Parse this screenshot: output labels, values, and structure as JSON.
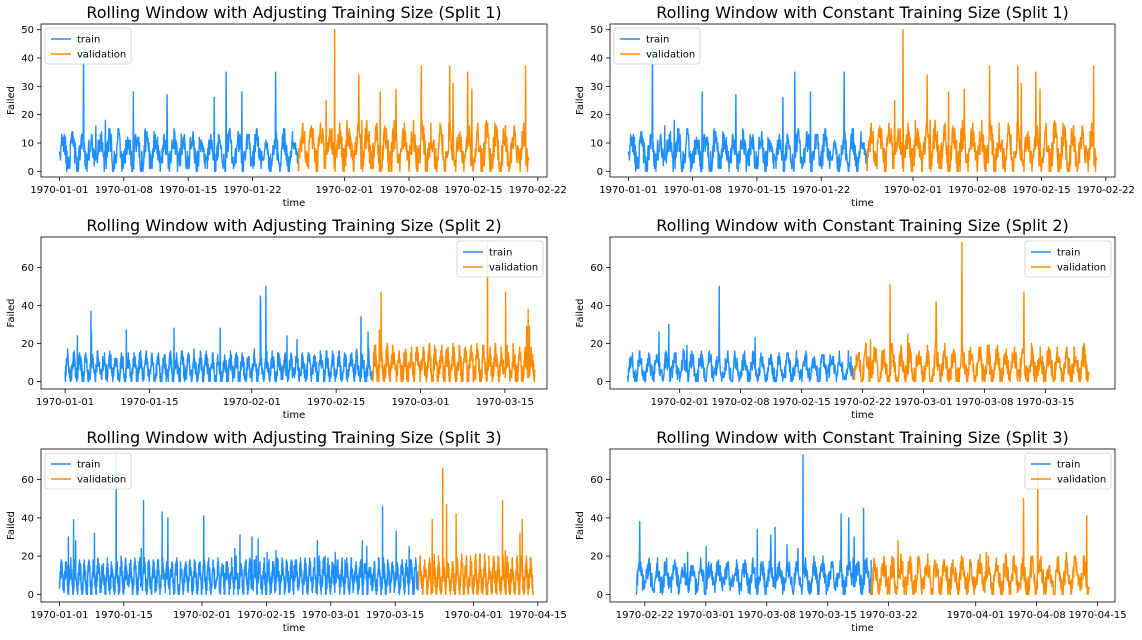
{
  "figure": {
    "colors": {
      "train": "#1f8fff",
      "validation": "#ff8c00",
      "axis": "#000000",
      "text": "#000000"
    }
  },
  "chart_data": [
    {
      "type": "line",
      "title": "Rolling Window with Adjusting Training Size (Split 1)",
      "xlabel": "time",
      "ylabel": "Failed",
      "xlim": [
        "1969-12-30",
        "1970-02-23"
      ],
      "ylim": [
        -2,
        52
      ],
      "xticks": [
        "1970-01-01",
        "1970-01-08",
        "1970-01-15",
        "1970-01-22",
        "1970-02-01",
        "1970-02-08",
        "1970-02-15",
        "1970-02-22"
      ],
      "yticks": [
        0,
        10,
        20,
        30,
        40,
        50
      ],
      "legend": "upper left",
      "grid": false,
      "series": [
        {
          "name": "train",
          "x_start": "1970-01-01",
          "x_end": "1970-01-27",
          "base": 7,
          "spread": 10,
          "peak_max": 45,
          "seed": 11
        },
        {
          "name": "validation",
          "x_start": "1970-01-27",
          "x_end": "1970-02-21",
          "base": 8,
          "spread": 12,
          "peak_max": 50,
          "seed": 12
        }
      ]
    },
    {
      "type": "line",
      "title": "Rolling Window with Constant Training Size (Split 1)",
      "xlabel": "time",
      "ylabel": "Failed",
      "xlim": [
        "1969-12-30",
        "1970-02-23"
      ],
      "ylim": [
        -2,
        52
      ],
      "xticks": [
        "1970-01-01",
        "1970-01-08",
        "1970-01-15",
        "1970-01-22",
        "1970-02-01",
        "1970-02-08",
        "1970-02-15",
        "1970-02-22"
      ],
      "yticks": [
        0,
        10,
        20,
        30,
        40,
        50
      ],
      "legend": "upper left",
      "grid": false,
      "series": [
        {
          "name": "train",
          "x_start": "1970-01-01",
          "x_end": "1970-01-27",
          "base": 7,
          "spread": 10,
          "peak_max": 45,
          "seed": 11
        },
        {
          "name": "validation",
          "x_start": "1970-01-27",
          "x_end": "1970-02-21",
          "base": 8,
          "spread": 12,
          "peak_max": 50,
          "seed": 12
        }
      ]
    },
    {
      "type": "line",
      "title": "Rolling Window with Adjusting Training Size (Split 2)",
      "xlabel": "time",
      "ylabel": "Failed",
      "xlim": [
        "1969-12-28",
        "1970-03-22"
      ],
      "ylim": [
        -4,
        76
      ],
      "xticks": [
        "1970-01-01",
        "1970-01-15",
        "1970-02-01",
        "1970-02-15",
        "1970-03-01",
        "1970-03-15"
      ],
      "yticks": [
        0,
        20,
        40,
        60
      ],
      "legend": "upper right",
      "grid": false,
      "series": [
        {
          "name": "train",
          "x_start": "1970-01-01",
          "x_end": "1970-02-21",
          "base": 7,
          "spread": 11,
          "peak_max": 50,
          "seed": 21
        },
        {
          "name": "validation",
          "x_start": "1970-02-21",
          "x_end": "1970-03-20",
          "base": 8,
          "spread": 14,
          "peak_max": 73,
          "seed": 22
        }
      ]
    },
    {
      "type": "line",
      "title": "Rolling Window with Constant Training Size (Split 2)",
      "xlabel": "time",
      "ylabel": "Failed",
      "xlim": [
        "1970-01-24",
        "1970-03-23"
      ],
      "ylim": [
        -4,
        76
      ],
      "xticks": [
        "1970-02-01",
        "1970-02-08",
        "1970-02-15",
        "1970-02-22",
        "1970-03-01",
        "1970-03-08",
        "1970-03-15"
      ],
      "yticks": [
        0,
        20,
        40,
        60
      ],
      "legend": "upper right",
      "grid": false,
      "series": [
        {
          "name": "train",
          "x_start": "1970-01-26",
          "x_end": "1970-02-21",
          "base": 7,
          "spread": 11,
          "peak_max": 50,
          "seed": 31
        },
        {
          "name": "validation",
          "x_start": "1970-02-21",
          "x_end": "1970-03-20",
          "base": 8,
          "spread": 14,
          "peak_max": 73,
          "seed": 32
        }
      ]
    },
    {
      "type": "line",
      "title": "Rolling Window with Adjusting Training Size (Split 3)",
      "xlabel": "time",
      "ylabel": "Failed",
      "xlim": [
        "1969-12-28",
        "1970-04-17"
      ],
      "ylim": [
        -4,
        76
      ],
      "xticks": [
        "1970-01-01",
        "1970-01-15",
        "1970-02-01",
        "1970-02-15",
        "1970-03-01",
        "1970-03-15",
        "1970-04-01",
        "1970-04-15"
      ],
      "yticks": [
        0,
        20,
        40,
        60
      ],
      "legend": "upper left",
      "grid": false,
      "series": [
        {
          "name": "train",
          "x_start": "1970-01-01",
          "x_end": "1970-03-20",
          "base": 9,
          "spread": 12,
          "peak_max": 73,
          "seed": 41
        },
        {
          "name": "validation",
          "x_start": "1970-03-20",
          "x_end": "1970-04-14",
          "base": 9,
          "spread": 14,
          "peak_max": 66,
          "seed": 42
        }
      ]
    },
    {
      "type": "line",
      "title": "Rolling Window with Constant Training Size (Split 3)",
      "xlabel": "time",
      "ylabel": "Failed",
      "xlim": [
        "1970-02-18",
        "1970-04-17"
      ],
      "ylim": [
        -4,
        76
      ],
      "xticks": [
        "1970-02-22",
        "1970-03-01",
        "1970-03-08",
        "1970-03-15",
        "1970-03-22",
        "1970-04-01",
        "1970-04-08",
        "1970-04-15"
      ],
      "yticks": [
        0,
        20,
        40,
        60
      ],
      "legend": "upper right",
      "grid": false,
      "series": [
        {
          "name": "train",
          "x_start": "1970-02-21",
          "x_end": "1970-03-20",
          "base": 9,
          "spread": 12,
          "peak_max": 73,
          "seed": 51
        },
        {
          "name": "validation",
          "x_start": "1970-03-20",
          "x_end": "1970-04-14",
          "base": 9,
          "spread": 14,
          "peak_max": 66,
          "seed": 52
        }
      ]
    }
  ]
}
